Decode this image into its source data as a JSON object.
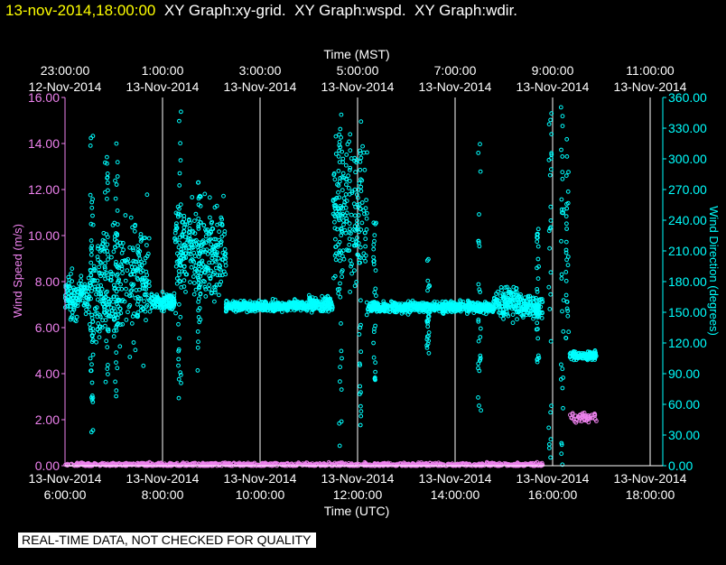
{
  "header": {
    "timestamp": "13-nov-2014,18:00:00",
    "graphs": [
      "XY Graph:xy-grid.",
      "XY Graph:wspd.",
      "XY Graph:wdir."
    ]
  },
  "disclaimer": "REAL-TIME DATA, NOT CHECKED FOR QUALITY",
  "colors": {
    "wind_speed": "#ee82ee",
    "wind_direction": "#00ffff",
    "grid": "#ffffff",
    "header_timestamp": "#ffff00",
    "text": "#ffffff"
  },
  "chart_data": {
    "type": "scatter",
    "xlabel_top": "Time (MST)",
    "xlabel_bottom": "Time (UTC)",
    "ylabel_left": "Wind Speed (m/s)",
    "ylabel_right": "Wind Direction (degrees)",
    "x_range_utc_hours": [
      6,
      18
    ],
    "ylim_left": [
      0,
      16
    ],
    "ylim_right": [
      0,
      360
    ],
    "grid": "vertical",
    "bottom_ticks": [
      {
        "hour": 6,
        "date": "13-Nov-2014",
        "time": "6:00:00"
      },
      {
        "hour": 8,
        "date": "13-Nov-2014",
        "time": "8:00:00"
      },
      {
        "hour": 10,
        "date": "13-Nov-2014",
        "time": "10:00:00"
      },
      {
        "hour": 12,
        "date": "13-Nov-2014",
        "time": "12:00:00"
      },
      {
        "hour": 14,
        "date": "13-Nov-2014",
        "time": "14:00:00"
      },
      {
        "hour": 16,
        "date": "13-Nov-2014",
        "time": "16:00:00"
      },
      {
        "hour": 18,
        "date": "13-Nov-2014",
        "time": "18:00:00"
      }
    ],
    "top_ticks": [
      {
        "hour": 6,
        "time": "23:00:00",
        "date": "12-Nov-2014"
      },
      {
        "hour": 8,
        "time": "1:00:00",
        "date": "13-Nov-2014"
      },
      {
        "hour": 10,
        "time": "3:00:00",
        "date": "13-Nov-2014"
      },
      {
        "hour": 12,
        "time": "5:00:00",
        "date": "13-Nov-2014"
      },
      {
        "hour": 14,
        "time": "7:00:00",
        "date": "13-Nov-2014"
      },
      {
        "hour": 16,
        "time": "9:00:00",
        "date": "13-Nov-2014"
      },
      {
        "hour": 18,
        "time": "11:00:00",
        "date": "13-Nov-2014"
      }
    ],
    "left_ticks": [
      "0.00",
      "2.00",
      "4.00",
      "6.00",
      "8.00",
      "10.00",
      "12.00",
      "14.00",
      "16.00"
    ],
    "right_ticks": [
      "0.00",
      "30.00",
      "60.00",
      "90.00",
      "120.00",
      "150.00",
      "180.00",
      "210.00",
      "240.00",
      "270.00",
      "300.00",
      "330.00",
      "360.00"
    ],
    "series": [
      {
        "name": "Wind Speed",
        "axis": "left",
        "segments": [
          {
            "x0": 6.0,
            "x1": 15.8,
            "y": 0.05,
            "spread": 0.08
          },
          {
            "x0": 16.35,
            "x1": 16.9,
            "y": 2.1,
            "spread": 0.2
          }
        ]
      },
      {
        "name": "Wind Direction",
        "axis": "right",
        "segments": [
          {
            "x0": 6.0,
            "x1": 6.5,
            "y": 165,
            "spread": 20
          },
          {
            "x0": 6.5,
            "x1": 7.3,
            "y": 175,
            "spread": 55
          },
          {
            "x0": 7.3,
            "x1": 7.75,
            "y": 180,
            "spread": 60
          },
          {
            "x0": 7.75,
            "x1": 8.25,
            "y": 160,
            "spread": 8
          },
          {
            "x0": 8.25,
            "x1": 9.3,
            "y": 210,
            "spread": 45
          },
          {
            "x0": 9.3,
            "x1": 11.0,
            "y": 156,
            "spread": 5
          },
          {
            "x0": 11.0,
            "x1": 11.5,
            "y": 158,
            "spread": 8
          },
          {
            "x0": 11.5,
            "x1": 12.2,
            "y": 245,
            "spread": 75
          },
          {
            "x0": 12.2,
            "x1": 14.8,
            "y": 155,
            "spread": 5
          },
          {
            "x0": 14.8,
            "x1": 15.35,
            "y": 160,
            "spread": 15
          },
          {
            "x0": 15.35,
            "x1": 15.8,
            "y": 155,
            "spread": 10
          },
          {
            "x0": 16.35,
            "x1": 16.9,
            "y": 108,
            "spread": 4
          }
        ],
        "outliers": [
          {
            "x": 6.55,
            "y0": 30,
            "y1": 340
          },
          {
            "x": 6.85,
            "y0": 50,
            "y1": 320
          },
          {
            "x": 7.05,
            "y0": 60,
            "y1": 340
          },
          {
            "x": 8.35,
            "y0": 50,
            "y1": 350
          },
          {
            "x": 8.75,
            "y0": 90,
            "y1": 300
          },
          {
            "x": 11.65,
            "y0": 10,
            "y1": 350
          },
          {
            "x": 12.05,
            "y0": 20,
            "y1": 340
          },
          {
            "x": 12.35,
            "y0": 80,
            "y1": 240
          },
          {
            "x": 13.45,
            "y0": 110,
            "y1": 210
          },
          {
            "x": 14.5,
            "y0": 30,
            "y1": 330
          },
          {
            "x": 15.7,
            "y0": 100,
            "y1": 240
          },
          {
            "x": 15.95,
            "y0": 0,
            "y1": 360
          },
          {
            "x": 16.2,
            "y0": 0,
            "y1": 360
          },
          {
            "x": 16.3,
            "y0": 120,
            "y1": 350
          }
        ]
      }
    ]
  }
}
